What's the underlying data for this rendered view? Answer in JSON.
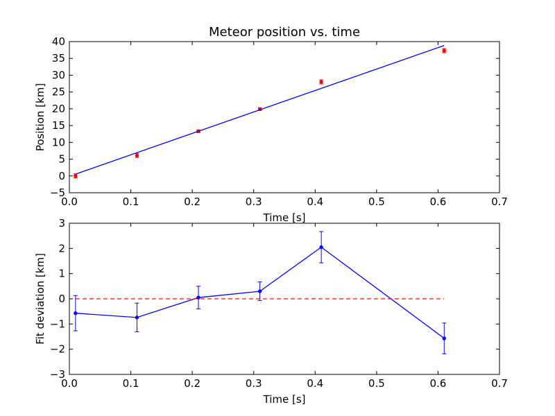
{
  "chart_data": [
    {
      "type": "scatter",
      "title": "Meteor position vs. time",
      "xlabel": "Time [s]",
      "ylabel": "Position [km]",
      "xlim": [
        0.0,
        0.7
      ],
      "ylim": [
        -5,
        40
      ],
      "xticks": [
        "0.0",
        "0.1",
        "0.2",
        "0.3",
        "0.4",
        "0.5",
        "0.6",
        "0.7"
      ],
      "yticks": [
        "−5",
        "0",
        "5",
        "10",
        "15",
        "20",
        "25",
        "30",
        "35",
        "40"
      ],
      "grid": false,
      "series": [
        {
          "style": "points-with-errorbars",
          "color": "#ff0000",
          "x": [
            0.01,
            0.11,
            0.21,
            0.31,
            0.41,
            0.61
          ],
          "y": [
            0.0,
            6.1,
            13.3,
            19.9,
            28.0,
            37.3
          ],
          "yerr": [
            0.6,
            0.6,
            0.4,
            0.4,
            0.6,
            0.6
          ]
        },
        {
          "style": "line",
          "color": "#0000ff",
          "x": [
            0.01,
            0.61
          ],
          "y": [
            0.55,
            38.85
          ]
        }
      ]
    },
    {
      "type": "line",
      "title": "",
      "xlabel": "Time [s]",
      "ylabel": "Fit deviation [km]",
      "xlim": [
        0.0,
        0.7
      ],
      "ylim": [
        -3,
        3
      ],
      "xticks": [
        "0.0",
        "0.1",
        "0.2",
        "0.3",
        "0.4",
        "0.5",
        "0.6",
        "0.7"
      ],
      "yticks": [
        "−3",
        "−2",
        "−1",
        "0",
        "1",
        "2",
        "3"
      ],
      "grid": false,
      "series": [
        {
          "style": "line-points-with-errorbars",
          "color": "#0000ff",
          "x": [
            0.01,
            0.11,
            0.21,
            0.31,
            0.41,
            0.61
          ],
          "y": [
            -0.57,
            -0.74,
            0.05,
            0.3,
            2.05,
            -1.57
          ],
          "yerr": [
            0.7,
            0.57,
            0.45,
            0.37,
            0.62,
            0.61
          ]
        },
        {
          "style": "dashed-line",
          "color": "#ff0000",
          "x": [
            0.01,
            0.61
          ],
          "y": [
            0,
            0
          ]
        }
      ]
    }
  ]
}
